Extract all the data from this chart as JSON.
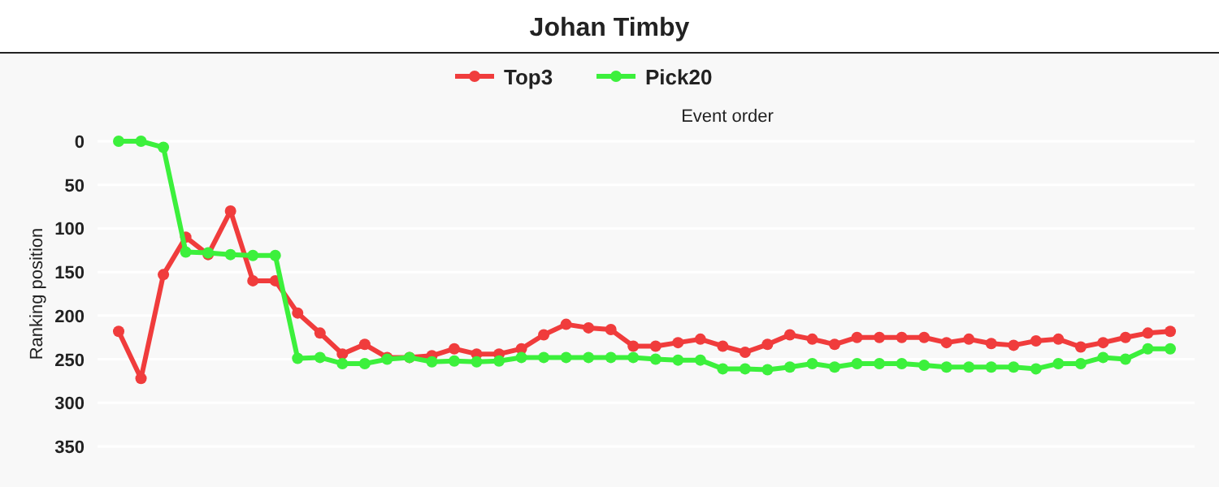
{
  "chart_data": {
    "type": "line",
    "title": "Johan Timby",
    "xlabel": "Event order",
    "ylabel": "Ranking position",
    "categories": [
      null,
      null,
      null,
      null,
      null,
      null,
      null,
      null,
      null,
      null,
      null,
      null,
      null,
      null,
      null,
      null,
      null,
      null,
      null,
      null,
      null,
      null,
      null,
      null,
      null,
      null,
      null,
      null,
      null,
      null,
      null,
      null,
      null,
      null,
      null,
      null,
      null,
      null,
      null,
      null,
      null,
      null,
      null,
      null,
      null,
      null,
      null,
      null
    ],
    "series": [
      {
        "name": "Top3",
        "color": "#f03c3c",
        "values": [
          218,
          272,
          153,
          110,
          130,
          80,
          160,
          160,
          197,
          220,
          244,
          233,
          248,
          248,
          246,
          238,
          244,
          244,
          238,
          222,
          210,
          214,
          216,
          235,
          235,
          231,
          227,
          235,
          242,
          233,
          222,
          227,
          233,
          225,
          225,
          225,
          225,
          231,
          227,
          232,
          234,
          229,
          227,
          236,
          231,
          225,
          220,
          218
        ]
      },
      {
        "name": "Pick20",
        "color": "#3cf03c",
        "values": [
          0,
          0,
          7,
          127,
          128,
          130,
          131,
          131,
          249,
          248,
          255,
          255,
          250,
          248,
          253,
          252,
          253,
          252,
          248,
          248,
          248,
          248,
          248,
          248,
          250,
          251,
          251,
          261,
          261,
          262,
          259,
          255,
          259,
          255,
          255,
          255,
          257,
          259,
          259,
          259,
          259,
          261,
          255,
          255,
          248,
          250,
          238,
          238
        ]
      }
    ],
    "ylim": [
      350,
      0
    ],
    "yticks": [
      0,
      50,
      100,
      150,
      200,
      250,
      300,
      350
    ],
    "grid": "y",
    "legend": "top",
    "marker": "circle",
    "line_style": "solid",
    "tick_labels": "y"
  }
}
